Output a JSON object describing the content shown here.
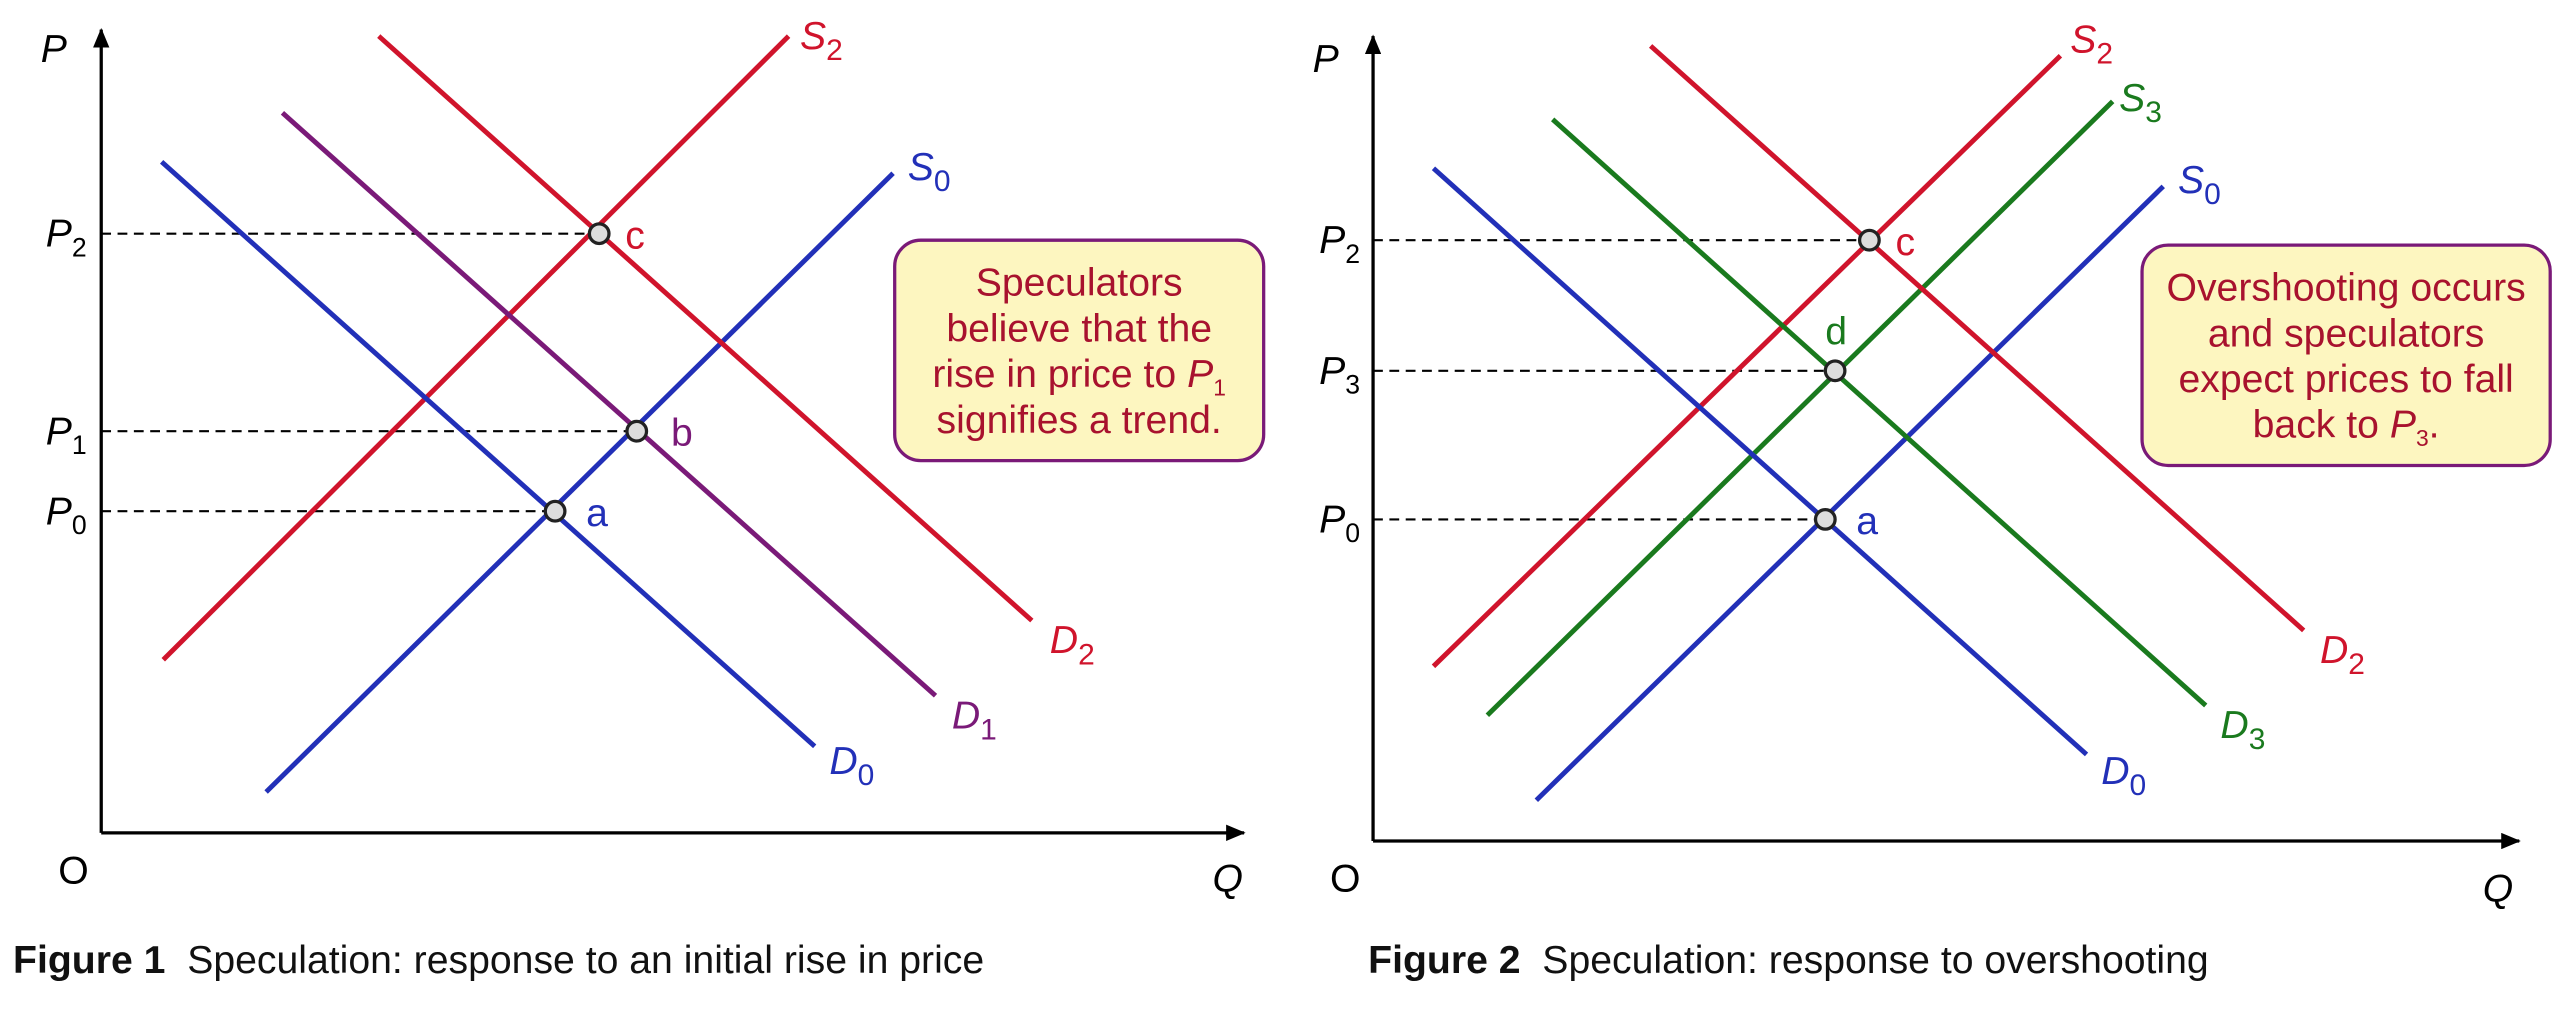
{
  "figures": [
    {
      "axes": {
        "y": "P",
        "x": "Q",
        "origin": "O"
      },
      "curves": [
        {
          "letter": "S",
          "sub": "2",
          "color": "#d0142c"
        },
        {
          "letter": "S",
          "sub": "0",
          "color": "#2230b8"
        },
        {
          "letter": "D",
          "sub": "0",
          "color": "#2230b8"
        },
        {
          "letter": "D",
          "sub": "1",
          "color": "#7a1a78"
        },
        {
          "letter": "D",
          "sub": "2",
          "color": "#d0142c"
        }
      ],
      "points": [
        {
          "label": "c",
          "color": "#d0142c",
          "price": {
            "letter": "P",
            "sub": "2"
          }
        },
        {
          "label": "b",
          "color": "#7a1a78",
          "price": {
            "letter": "P",
            "sub": "1"
          }
        },
        {
          "label": "a",
          "color": "#2230b8",
          "price": {
            "letter": "P",
            "sub": "0"
          }
        }
      ],
      "note": {
        "lines": [
          "Speculators",
          "believe that the",
          "rise in price to",
          "signifies a trend."
        ],
        "ref": {
          "letter": "P",
          "sub": "1"
        }
      },
      "caption": {
        "number": "Figure 1",
        "text": "Speculation: response to an initial rise in price"
      }
    },
    {
      "axes": {
        "y": "P",
        "x": "Q",
        "origin": "O"
      },
      "curves": [
        {
          "letter": "S",
          "sub": "2",
          "color": "#d0142c"
        },
        {
          "letter": "S",
          "sub": "3",
          "color": "#1a7a1e"
        },
        {
          "letter": "S",
          "sub": "0",
          "color": "#2230b8"
        },
        {
          "letter": "D",
          "sub": "0",
          "color": "#2230b8"
        },
        {
          "letter": "D",
          "sub": "3",
          "color": "#1a7a1e"
        },
        {
          "letter": "D",
          "sub": "2",
          "color": "#d0142c"
        }
      ],
      "points": [
        {
          "label": "c",
          "color": "#d0142c",
          "price": {
            "letter": "P",
            "sub": "2"
          }
        },
        {
          "label": "d",
          "color": "#1a7a1e",
          "price": {
            "letter": "P",
            "sub": "3"
          }
        },
        {
          "label": "a",
          "color": "#2230b8",
          "price": {
            "letter": "P",
            "sub": "0"
          }
        }
      ],
      "note": {
        "lines": [
          "Overshooting occurs",
          "and speculators",
          "expect prices to fall",
          "back to"
        ],
        "ref": {
          "letter": "P",
          "sub": "3"
        },
        "end": "."
      },
      "caption": {
        "number": "Figure 2",
        "text": "Speculation: response to overshooting"
      }
    }
  ]
}
